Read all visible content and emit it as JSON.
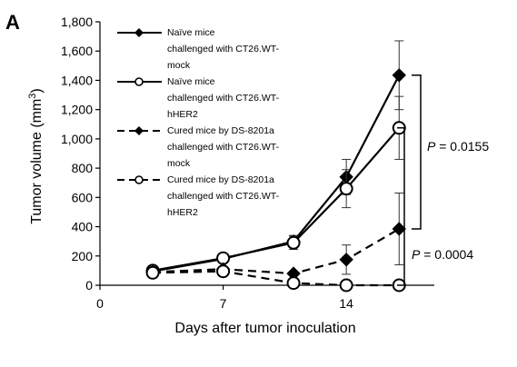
{
  "panel_label": "A",
  "chart_data": {
    "type": "line",
    "xlabel": "Days after tumor inoculation",
    "ylabel": "Tumor volume (mm3)",
    "ylabel_parts": {
      "main": "Tumor volume (mm",
      "sup": "3",
      "close": ")"
    },
    "xlim": [
      0,
      19
    ],
    "ylim": [
      0,
      1800
    ],
    "xticks": [
      0,
      7,
      14
    ],
    "xtick_labels": [
      "0",
      "7",
      "14"
    ],
    "yticks": [
      0,
      200,
      400,
      600,
      800,
      1000,
      1200,
      1400,
      1600,
      1800
    ],
    "ytick_labels": [
      "0",
      "200",
      "400",
      "600",
      "800",
      "1,000",
      "1,200",
      "1,400",
      "1,600",
      "1,800"
    ],
    "x": [
      3,
      7,
      11,
      14,
      17
    ],
    "series": [
      {
        "name": "Naïve mice challenged with CT26.WT-mock",
        "legend_lines": [
          "Naïve mice",
          "challenged with CT26.WT-",
          "mock"
        ],
        "marker": "diamond-filled",
        "linestyle": "solid",
        "values": [
          95,
          180,
          300,
          740,
          1435
        ],
        "errors": [
          15,
          25,
          40,
          120,
          235
        ]
      },
      {
        "name": "Naïve mice challenged with CT26.WT-hHER2",
        "legend_lines": [
          "Naïve mice",
          "challenged with CT26.WT-",
          "hHER2"
        ],
        "marker": "circle-open",
        "linestyle": "solid",
        "values": [
          100,
          185,
          290,
          660,
          1075
        ],
        "errors": [
          15,
          25,
          45,
          130,
          215
        ]
      },
      {
        "name": "Cured mice by DS-8201a challenged with CT26.WT-mock",
        "legend_lines": [
          "Cured mice by DS-8201a",
          "challenged with CT26.WT-",
          "mock"
        ],
        "marker": "diamond-filled",
        "linestyle": "dashed",
        "values": [
          90,
          110,
          80,
          175,
          385
        ],
        "errors": [
          0,
          0,
          0,
          100,
          245
        ]
      },
      {
        "name": "Cured mice by DS-8201a challenged with CT26.WT-hHER2",
        "legend_lines": [
          "Cured mice by DS-8201a",
          "challenged with CT26.WT-",
          "hHER2"
        ],
        "marker": "circle-open",
        "linestyle": "dashed",
        "values": [
          85,
          95,
          15,
          0,
          0
        ],
        "errors": [
          0,
          0,
          0,
          0,
          0
        ]
      }
    ],
    "annotations": [
      {
        "label_prefix": "P",
        "label_value": " = 0.0155",
        "range": [
          385,
          1435
        ]
      },
      {
        "label_prefix": "P",
        "label_value": " = 0.0004",
        "range": [
          0,
          1075
        ]
      }
    ],
    "legend_position": "top-left"
  }
}
